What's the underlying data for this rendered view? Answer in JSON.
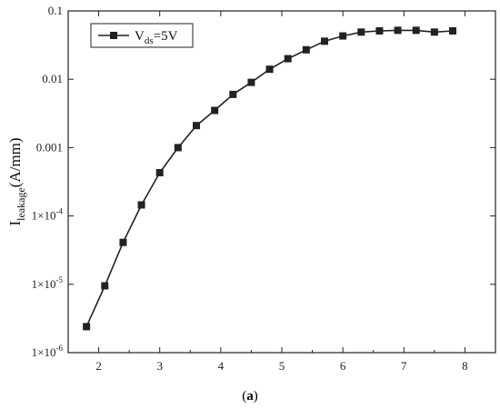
{
  "chart_data": {
    "type": "line",
    "xlim": [
      1.5,
      8.5
    ],
    "ylim": [
      1e-06,
      0.1
    ],
    "y_scale": "log",
    "x_ticks": [
      2,
      3,
      4,
      5,
      6,
      7,
      8
    ],
    "y_ticks": [
      {
        "value": 0.1,
        "label": "0.1"
      },
      {
        "value": 0.01,
        "label": "0.01"
      },
      {
        "value": 0.001,
        "label": "0.001"
      },
      {
        "value": 0.0001,
        "mant": "1×10",
        "exp": "-4"
      },
      {
        "value": 1e-05,
        "mant": "1×10",
        "exp": "-5"
      },
      {
        "value": 1e-06,
        "mant": "1×10",
        "exp": "-6"
      }
    ],
    "ylabel": {
      "main": "I",
      "sub": "leakage",
      "rest": "(A/mm)"
    },
    "legend": {
      "position": "top-left",
      "label_main": "V",
      "label_sub": "ds",
      "label_rest": "=5V"
    },
    "series": [
      {
        "name": "Vds=5V",
        "marker": "square",
        "color": "#222222",
        "x": [
          1.8,
          2.1,
          2.4,
          2.7,
          3.0,
          3.3,
          3.6,
          3.9,
          4.2,
          4.5,
          4.8,
          5.1,
          5.4,
          5.7,
          6.0,
          6.3,
          6.6,
          6.9,
          7.2,
          7.5,
          7.8
        ],
        "y": [
          2.4e-06,
          9.5e-06,
          4.1e-05,
          0.000145,
          0.00043,
          0.001,
          0.0021,
          0.0035,
          0.006,
          0.009,
          0.014,
          0.02,
          0.027,
          0.036,
          0.043,
          0.049,
          0.051,
          0.052,
          0.052,
          0.049,
          0.051
        ]
      }
    ],
    "grid": false
  },
  "caption": {
    "text": "a"
  }
}
